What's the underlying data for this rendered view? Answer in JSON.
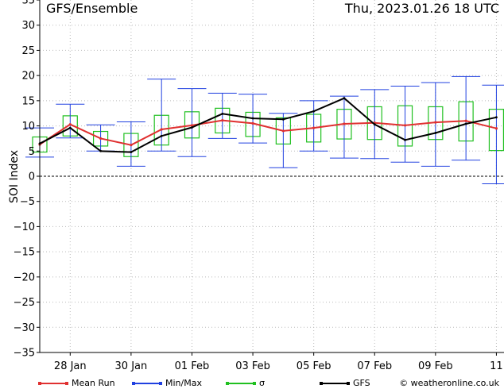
{
  "header": {
    "title": "GFS/Ensemble",
    "datetime": "Thu, 2023.01.26   18 UTC"
  },
  "credit": "© weatheronline.co.uk",
  "colors": {
    "mean": "#e03030",
    "minmax": "#2040e0",
    "sigma": "#20c020",
    "gfs": "#000000",
    "grid": "#bbbbbb"
  },
  "legend": [
    {
      "label": "Mean Run",
      "color": "#e03030"
    },
    {
      "label": "Min/Max",
      "color": "#2040e0"
    },
    {
      "label": "σ",
      "color": "#20c020"
    },
    {
      "label": "GFS",
      "color": "#000000"
    }
  ],
  "chart_data": {
    "type": "line",
    "title": "GFS/Ensemble",
    "ylabel": "SOI Index",
    "ylim": [
      -35,
      35
    ],
    "yticks": [
      -35,
      -30,
      -25,
      -20,
      -15,
      -10,
      -5,
      0,
      5,
      10,
      15,
      20,
      25,
      30,
      35
    ],
    "x_tick_labels": [
      "28 Jan",
      "30 Jan",
      "01 Feb",
      "03 Feb",
      "05 Feb",
      "07 Feb",
      "09 Feb",
      "11"
    ],
    "x_tick_days": [
      1.25,
      3.25,
      5.25,
      7.25,
      9.25,
      11.25,
      13.25,
      15.25
    ],
    "xlim": [
      0.25,
      15.5
    ],
    "grid": true,
    "x_days": [
      0.25,
      1.25,
      2.25,
      3.25,
      4.25,
      5.25,
      6.25,
      7.25,
      8.25,
      9.25,
      10.25,
      11.25,
      12.25,
      13.25,
      14.25,
      15.25
    ],
    "series": [
      {
        "name": "Mean Run",
        "values": [
          6.3,
          10.3,
          7.5,
          6.2,
          9.3,
          10.1,
          11.1,
          10.5,
          9.0,
          9.6,
          10.4,
          10.6,
          10.1,
          10.7,
          11.0,
          9.5
        ]
      },
      {
        "name": "GFS",
        "values": [
          6.5,
          9.6,
          5.0,
          4.8,
          8.0,
          9.7,
          12.4,
          11.5,
          11.3,
          12.9,
          15.5,
          10.3,
          7.2,
          8.6,
          10.4,
          11.7
        ]
      },
      {
        "name": "Min/Max",
        "min": [
          3.8,
          7.6,
          5.0,
          2.0,
          5.0,
          3.9,
          7.5,
          6.6,
          1.7,
          5.0,
          3.6,
          3.5,
          2.8,
          2.0,
          3.2,
          -1.5
        ],
        "max": [
          9.6,
          14.3,
          10.2,
          10.8,
          19.3,
          17.4,
          16.5,
          16.3,
          12.5,
          15.0,
          15.9,
          17.2,
          17.9,
          18.6,
          19.8,
          18.1
        ]
      },
      {
        "name": "σ",
        "lower": [
          4.8,
          8.0,
          6.0,
          3.9,
          6.2,
          7.6,
          8.6,
          7.9,
          6.4,
          6.8,
          7.4,
          7.3,
          6.0,
          7.3,
          7.0,
          5.1
        ],
        "upper": [
          7.8,
          12.0,
          8.9,
          8.5,
          12.1,
          12.8,
          13.5,
          12.7,
          11.6,
          12.3,
          13.3,
          13.8,
          14.0,
          13.8,
          14.8,
          13.3
        ]
      }
    ]
  }
}
